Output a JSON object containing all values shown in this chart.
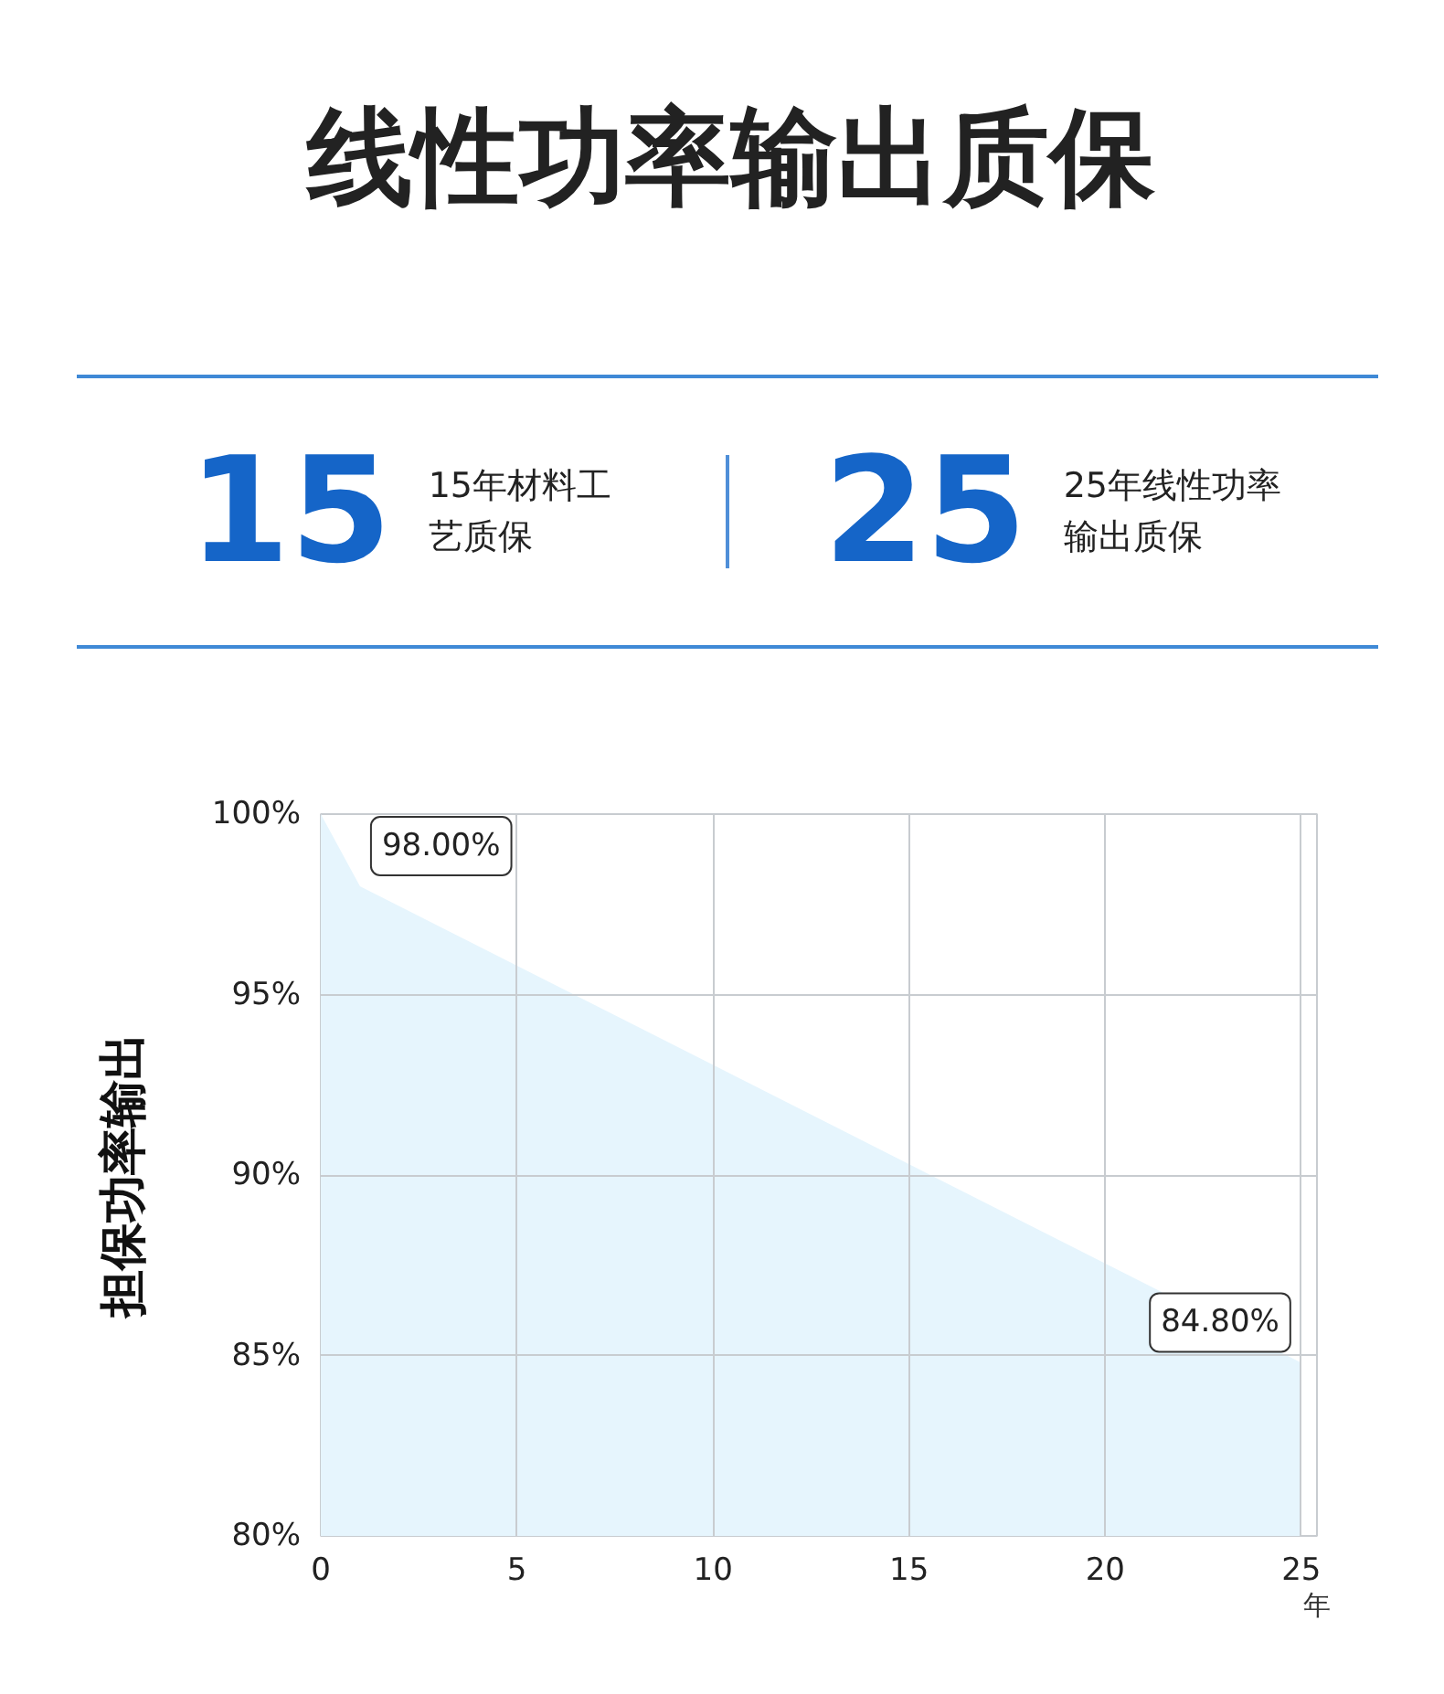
{
  "chart_data": {
    "type": "area",
    "title": "线性功率输出质保",
    "annotations": [
      {
        "text": "98.00%",
        "x": 1,
        "y": 98
      },
      {
        "text": "84.80%",
        "x": 25,
        "y": 84.8
      },
      "15",
      "15年材料工艺质保",
      "25",
      "25年线性功率输出质保"
    ],
    "xlabel": "年",
    "ylabel": "担保功率输出",
    "x": [
      0,
      1,
      25
    ],
    "values": [
      100,
      98,
      84.8
    ],
    "color": "#e6f5fd",
    "xlim": [
      0,
      25.4
    ],
    "xticks": [
      0,
      5,
      10,
      15,
      20,
      25
    ],
    "ylim": [
      80,
      100
    ],
    "yticks": [
      {
        "value": 80,
        "label": "80%"
      },
      {
        "value": 85,
        "label": "85%"
      },
      {
        "value": 90,
        "label": "90%"
      },
      {
        "value": 95,
        "label": "95%"
      },
      {
        "value": 100,
        "label": "100%"
      }
    ],
    "grid": true
  }
}
